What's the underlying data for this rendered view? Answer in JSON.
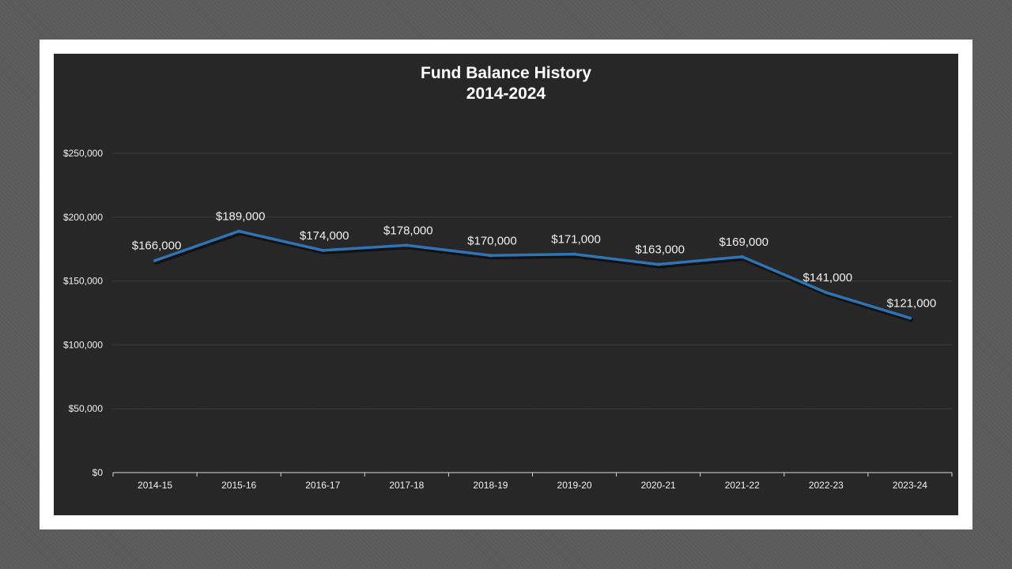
{
  "chart_data": {
    "type": "line",
    "title_line1": "Fund Balance History",
    "title_line2": "2014-2024",
    "categories": [
      "2014-15",
      "2015-16",
      "2016-17",
      "2017-18",
      "2018-19",
      "2019-20",
      "2020-21",
      "2021-22",
      "2022-23",
      "2023-24"
    ],
    "values": [
      166000,
      189000,
      174000,
      178000,
      170000,
      171000,
      163000,
      169000,
      141000,
      121000
    ],
    "data_labels": [
      "$166,000",
      "$189,000",
      "$174,000",
      "$178,000",
      "$170,000",
      "$171,000",
      "$163,000",
      "$169,000",
      "$141,000",
      "$121,000"
    ],
    "ylim": [
      0,
      250000
    ],
    "y_ticks": [
      0,
      50000,
      100000,
      150000,
      200000,
      250000
    ],
    "y_tick_labels": [
      "$0",
      "$50,000",
      "$100,000",
      "$150,000",
      "$200,000",
      "$250,000"
    ],
    "grid": true,
    "colors": {
      "line": "#2e75b6",
      "background": "#262626",
      "gridline": "#3f3f3f",
      "axis": "#d9d9d9",
      "text": "#f2f2f2"
    }
  }
}
